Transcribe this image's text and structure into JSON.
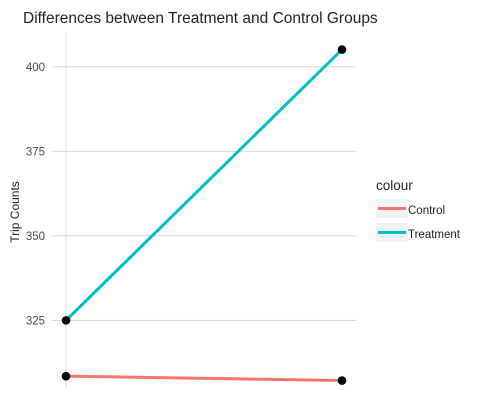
{
  "chart_data": {
    "type": "line",
    "title": "Differences between Treatment and Control Groups",
    "xlabel": "",
    "ylabel": "Trip Counts",
    "x": [
      0,
      1
    ],
    "ylim": [
      305,
      410
    ],
    "yticks": [
      325,
      350,
      375,
      400
    ],
    "grid": true,
    "legend": {
      "title": "colour",
      "placement": "right",
      "entries": [
        "Control",
        "Treatment"
      ]
    },
    "series": [
      {
        "name": "Control",
        "color": "#F8766D",
        "values": [
          308.5,
          307.2
        ]
      },
      {
        "name": "Treatment",
        "color": "#00BFC4",
        "values": [
          325,
          405.1
        ]
      }
    ],
    "point_color": "#000000"
  }
}
